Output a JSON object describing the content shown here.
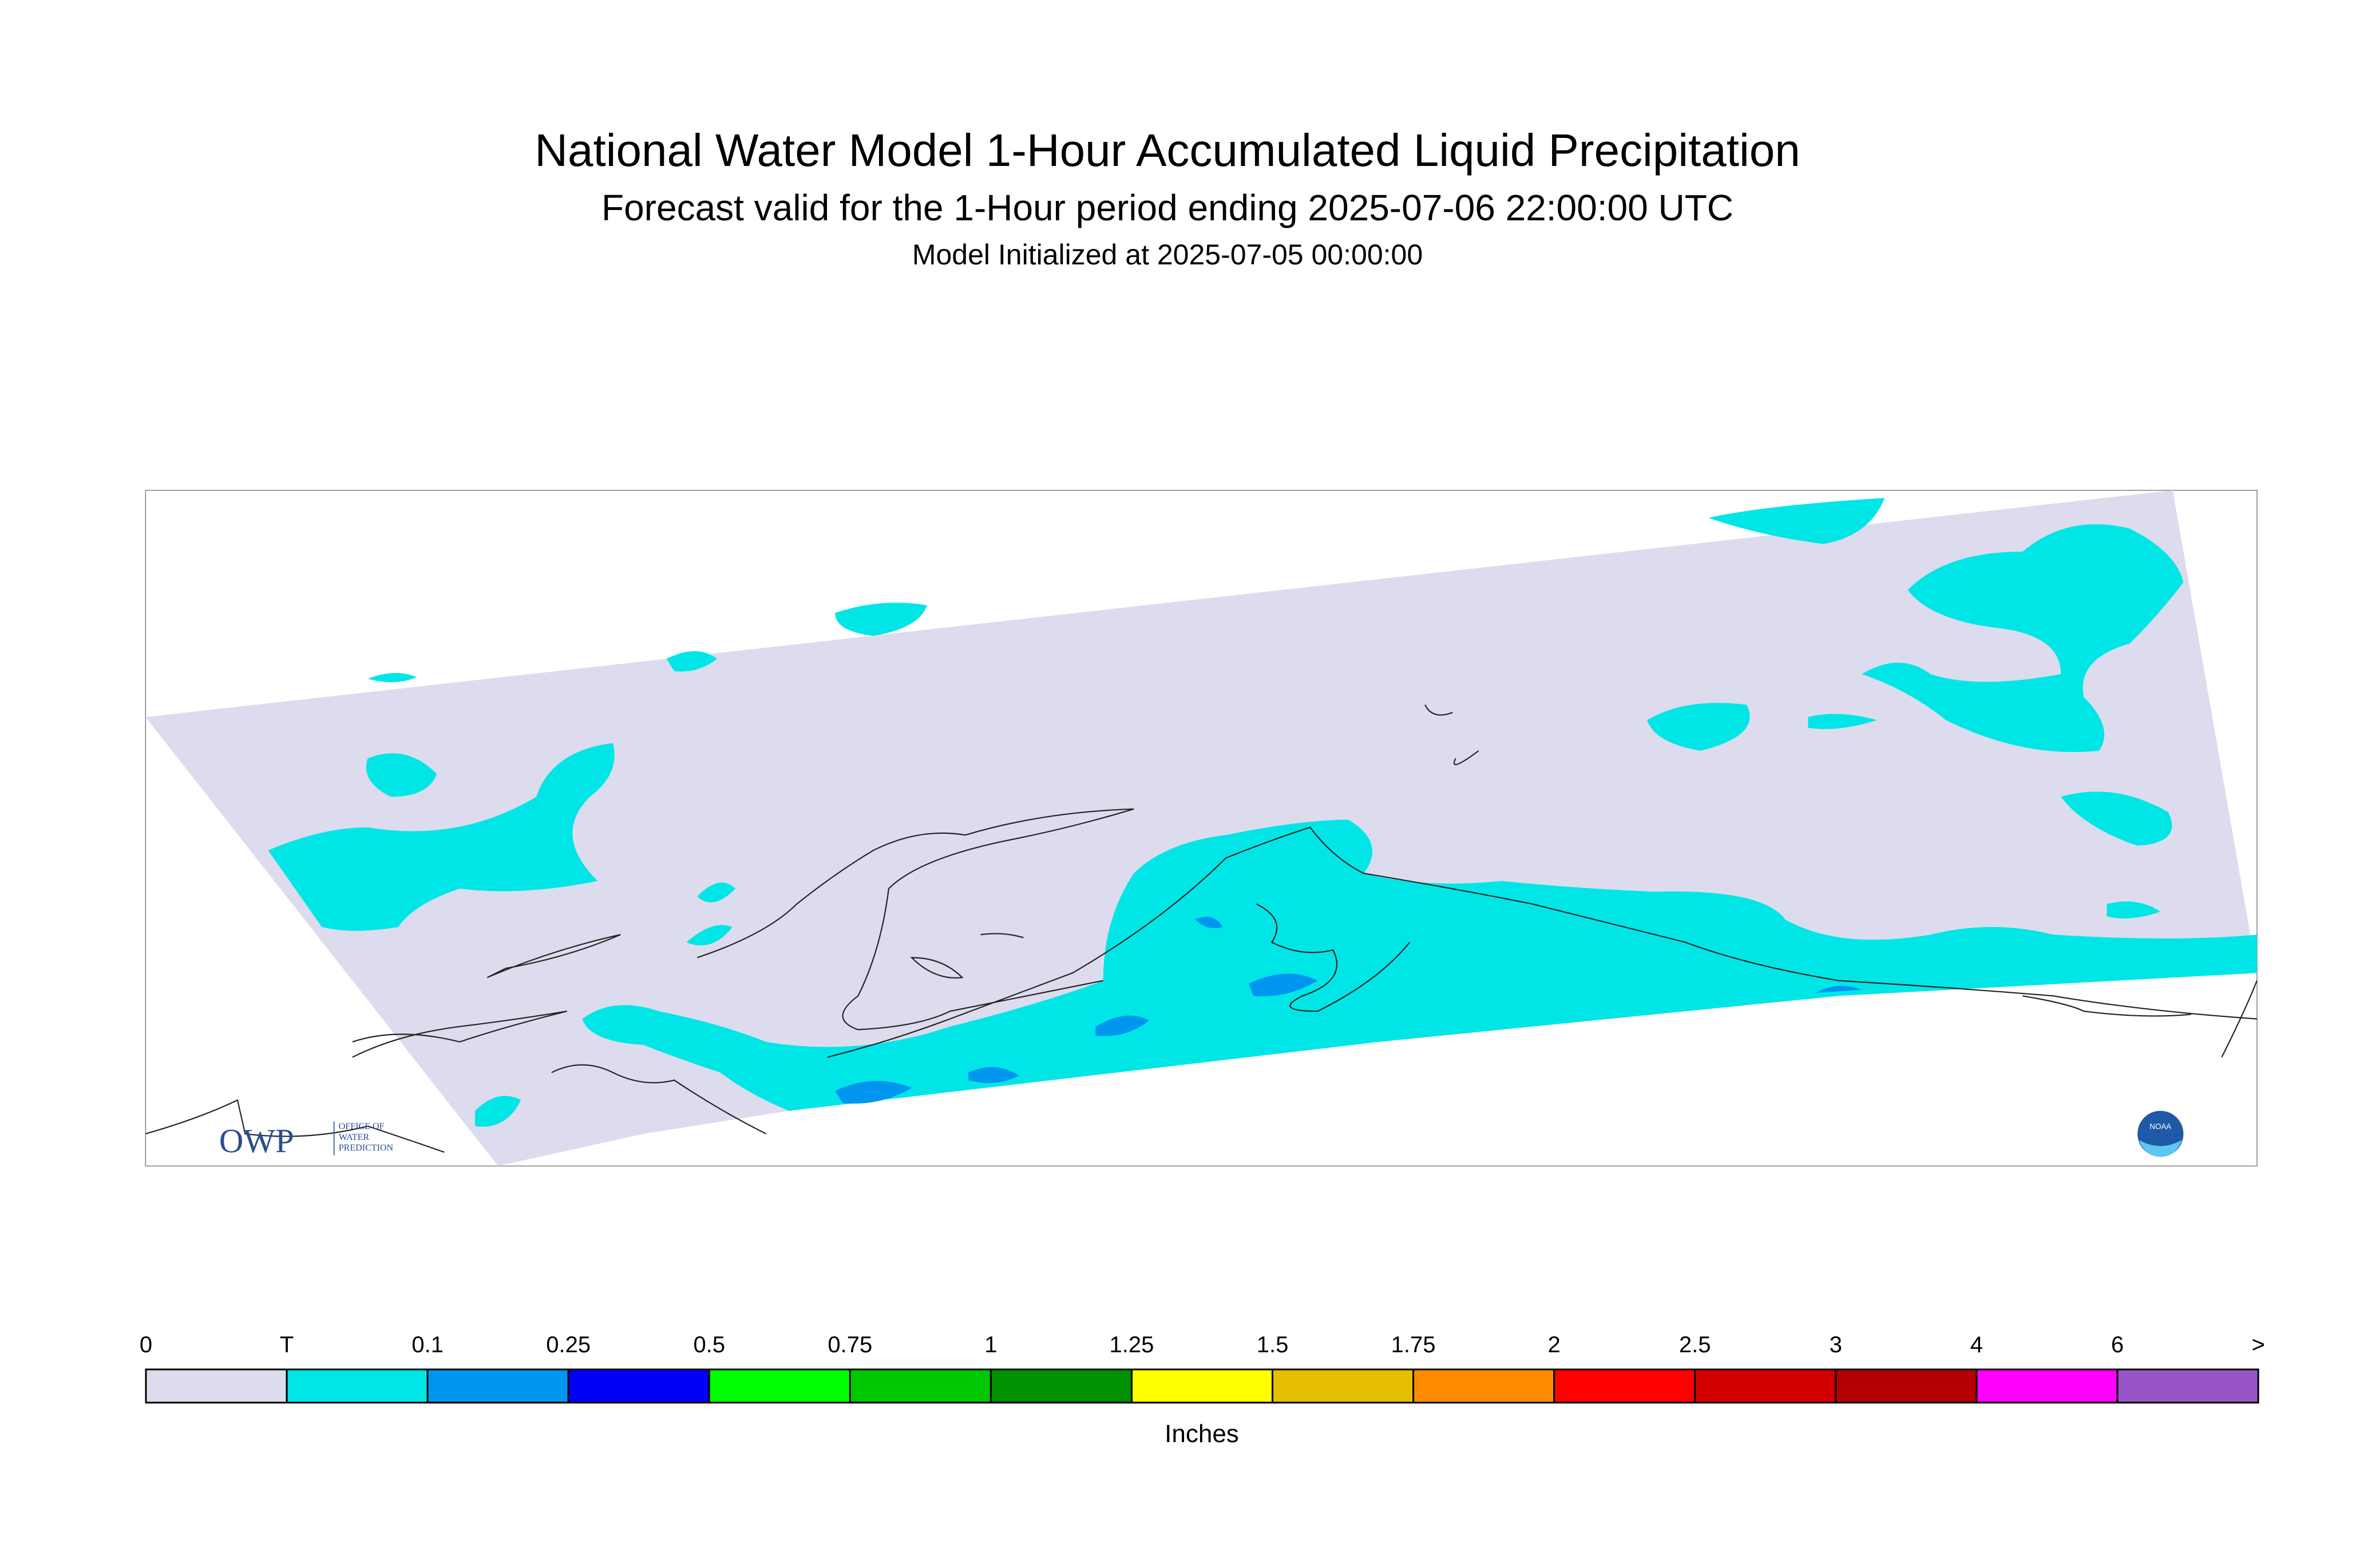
{
  "header": {
    "title": "National Water Model 1-Hour Accumulated Liquid Precipitation",
    "subtitle": "Forecast valid for the 1-Hour period ending 2025-07-06 22:00:00 UTC",
    "initialized": "Model Initialized at 2025-07-05 00:00:00"
  },
  "logos": {
    "owp": "OWP",
    "owp_lines": [
      "OFFICE OF",
      "WATER",
      "PREDICTION"
    ],
    "noaa": "NOAA"
  },
  "legend": {
    "labels": [
      "0",
      "T",
      "0.1",
      "0.25",
      "0.5",
      "0.75",
      "1",
      "1.25",
      "1.5",
      "1.75",
      "2",
      "2.5",
      "3",
      "4",
      "6",
      ">"
    ],
    "colors": [
      "#dcdcee",
      "#00e6e6",
      "#0096f0",
      "#0000f5",
      "#00ff00",
      "#00c800",
      "#009000",
      "#ffff00",
      "#e6c000",
      "#ff8c00",
      "#ff0000",
      "#d40000",
      "#b40000",
      "#ff00ff",
      "#9955c8"
    ],
    "units": "Inches"
  }
}
